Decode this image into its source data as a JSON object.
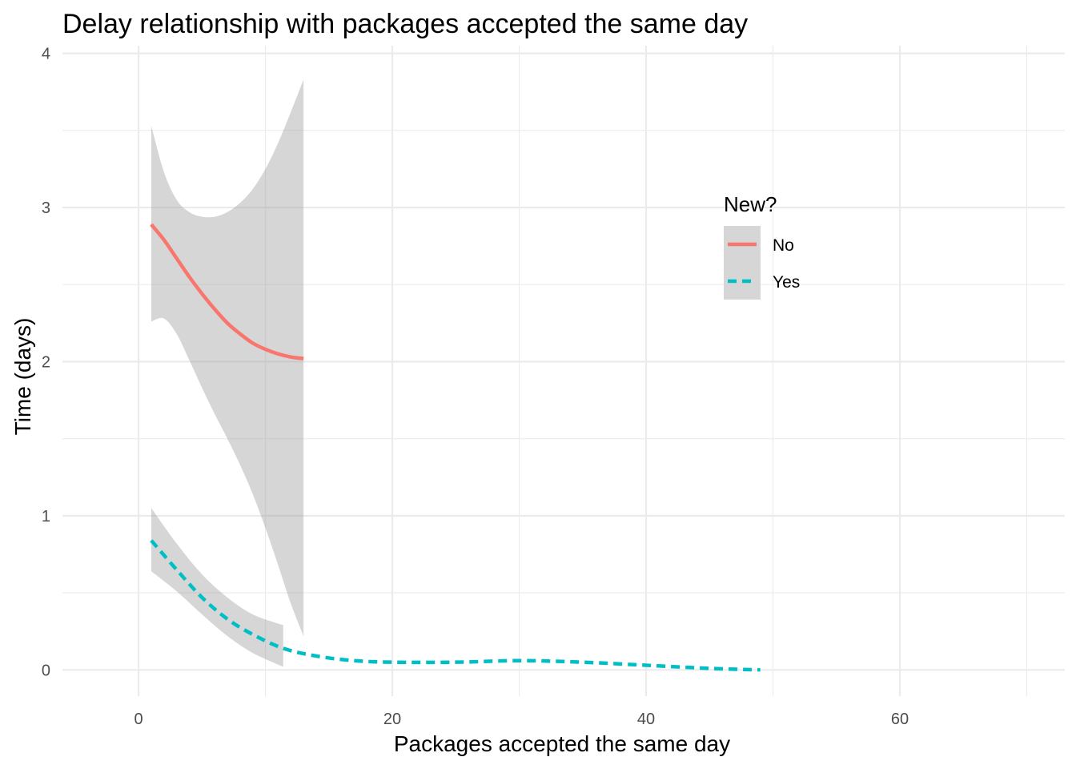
{
  "chart_data": {
    "type": "line",
    "title": "Delay relationship with packages accepted the same day",
    "xlabel": "Packages accepted the same day",
    "ylabel": "Time (days)",
    "xlim": [
      -6,
      73
    ],
    "ylim": [
      -0.17,
      4.05
    ],
    "x_ticks": [
      0,
      20,
      40,
      60
    ],
    "y_ticks": [
      0,
      1,
      2,
      3,
      4
    ],
    "x_minor_ticks": [
      10,
      30,
      50,
      70
    ],
    "y_minor_ticks": [
      0.5,
      1.5,
      2.5,
      3.5
    ],
    "grid": true,
    "legend": {
      "title": "New?",
      "position": "right",
      "entries": [
        "No",
        "Yes"
      ]
    },
    "series": [
      {
        "name": "No",
        "color": "#F8766D",
        "linetype": "solid",
        "x": [
          1,
          2,
          3,
          4,
          5,
          6,
          7,
          8,
          9,
          10,
          11,
          12,
          13
        ],
        "y": [
          2.89,
          2.79,
          2.67,
          2.55,
          2.44,
          2.34,
          2.25,
          2.18,
          2.12,
          2.08,
          2.05,
          2.03,
          2.02
        ],
        "ci_upper": [
          3.53,
          3.23,
          3.05,
          2.97,
          2.94,
          2.94,
          2.97,
          3.03,
          3.12,
          3.25,
          3.42,
          3.62,
          3.83
        ],
        "ci_lower": [
          2.26,
          2.28,
          2.18,
          2.01,
          1.83,
          1.66,
          1.5,
          1.33,
          1.14,
          0.92,
          0.68,
          0.43,
          0.22
        ]
      },
      {
        "name": "Yes",
        "color": "#00BFC4",
        "linetype": "dashed",
        "x": [
          1,
          3,
          5,
          7,
          9,
          11.4,
          14,
          17,
          20,
          25,
          30,
          35,
          40,
          45,
          49
        ],
        "y": [
          0.84,
          0.65,
          0.47,
          0.33,
          0.23,
          0.14,
          0.09,
          0.06,
          0.05,
          0.05,
          0.06,
          0.05,
          0.03,
          0.01,
          0.0
        ],
        "ci_x": [
          1,
          3,
          5,
          7,
          9,
          11.4
        ],
        "ci_upper": [
          1.05,
          0.82,
          0.62,
          0.47,
          0.36,
          0.29
        ],
        "ci_lower": [
          0.64,
          0.51,
          0.36,
          0.22,
          0.11,
          0.02
        ]
      }
    ]
  }
}
